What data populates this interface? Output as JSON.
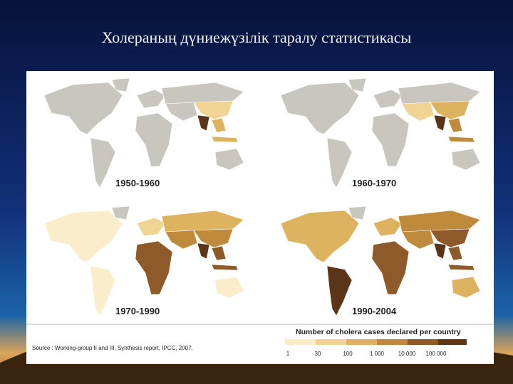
{
  "title": "Холераның дүниежүзілік таралу статистикасы",
  "panels": [
    {
      "label": "1950-1960"
    },
    {
      "label": "1960-1970"
    },
    {
      "label": "1970-1990"
    },
    {
      "label": "1990-2004"
    }
  ],
  "legend": {
    "title": "Number of cholera cases declared per country",
    "labels": [
      "1",
      "30",
      "100",
      "1 000",
      "10 000",
      "100 000"
    ]
  },
  "source": "Source : Working-group II and III, Synthesis report, IPCC, 2007."
}
